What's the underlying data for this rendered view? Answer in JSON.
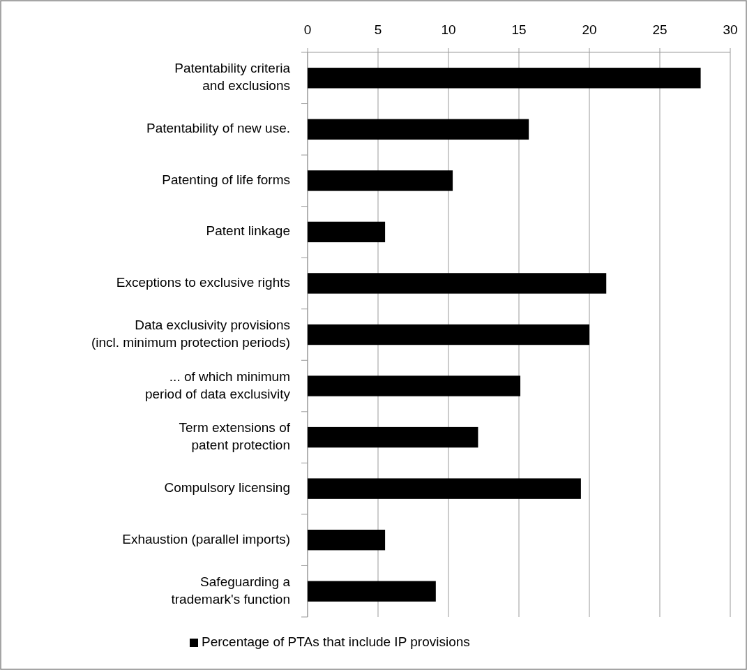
{
  "chart_data": {
    "type": "bar",
    "orientation": "horizontal",
    "categories": [
      "Patentability criteria and exclusions",
      "Patentability of new use.",
      "Patenting of life forms",
      "Patent linkage",
      "Exceptions to exclusive rights",
      "Data exclusivity provisions (incl. minimum protection periods)",
      "... of which minimum period of data exclusivity",
      "Term extensions of patent protection",
      "Compulsory licensing",
      "Exhaustion (parallel imports)",
      "Safeguarding a trademark's function"
    ],
    "series": [
      {
        "name": "Percentage of PTAs that include IP provisions",
        "color": "#000000",
        "values": [
          27.9,
          15.7,
          10.3,
          5.5,
          21.2,
          20.0,
          15.1,
          12.1,
          19.4,
          5.5,
          9.1
        ]
      }
    ],
    "xlim": [
      0,
      30
    ],
    "xticks": [
      0,
      5,
      10,
      15,
      20,
      25,
      30
    ],
    "grid": "x",
    "legend": "bottom"
  }
}
